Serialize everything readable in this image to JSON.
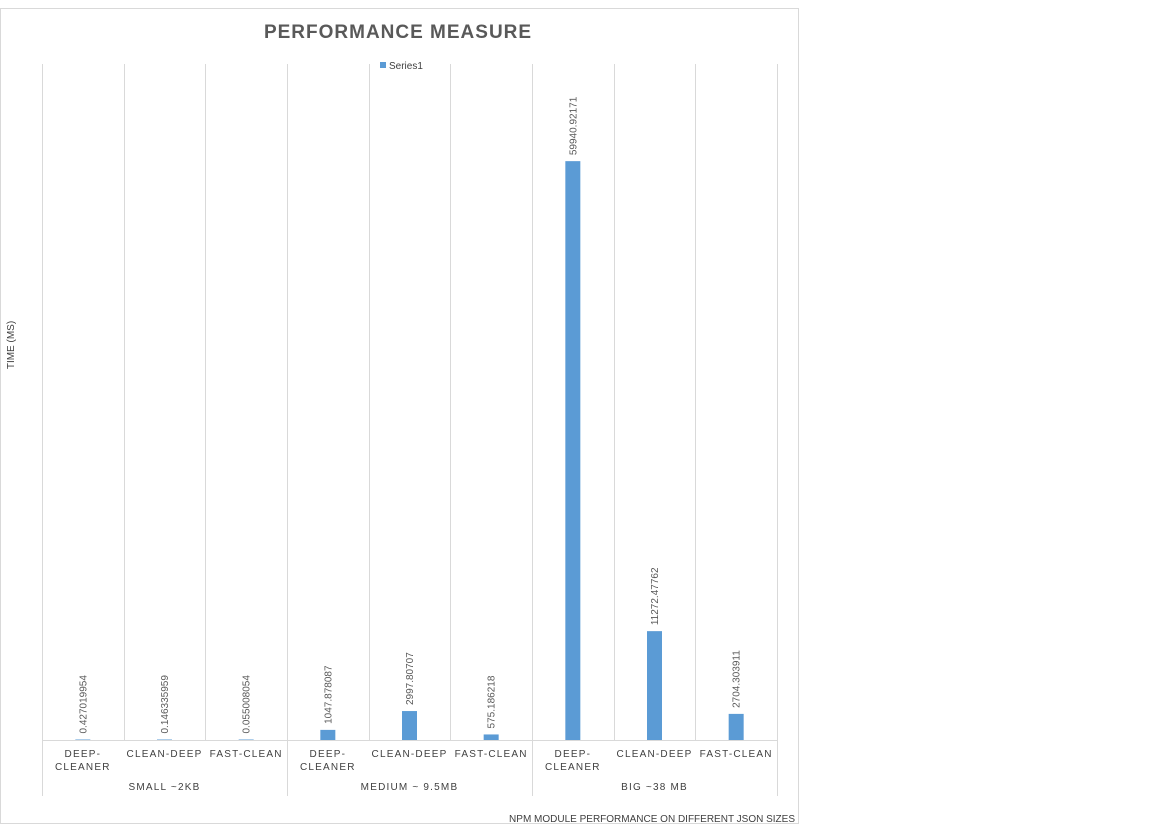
{
  "chart_data": {
    "type": "bar",
    "title": "PERFORMANCE MEASURE",
    "xlabel": "NPM MODULE PERFORMANCE ON DIFFERENT JSON SIZES",
    "ylabel": "TIME (MS)",
    "groups": [
      {
        "label": "SMALL ~2KB",
        "categories": [
          "DEEP-\nCLEANER",
          "CLEAN-DEEP",
          "FAST-CLEAN"
        ]
      },
      {
        "label": "MEDIUM ~ 9.5MB",
        "categories": [
          "DEEP-\nCLEANER",
          "CLEAN-DEEP",
          "FAST-CLEAN"
        ]
      },
      {
        "label": "BIG ~38 MB",
        "categories": [
          "DEEP-\nCLEANER",
          "CLEAN-DEEP",
          "FAST-CLEAN"
        ]
      }
    ],
    "series": [
      {
        "name": "Series1",
        "color": "#5b9bd5",
        "values": [
          0.427019954,
          0.146335959,
          0.055008054,
          1047.878087,
          2997.80707,
          575.186218,
          59940.92171,
          11272.47762,
          2704.303911
        ],
        "labels": [
          "0.427019954",
          "0.146335959",
          "0.055008054",
          "1047.878087",
          "2997.80707",
          "575.186218",
          "59940.92171",
          "11272.47762",
          "2704.303911"
        ]
      }
    ],
    "ylim": [
      0,
      70000
    ],
    "grid": true,
    "legend": "top-center"
  }
}
